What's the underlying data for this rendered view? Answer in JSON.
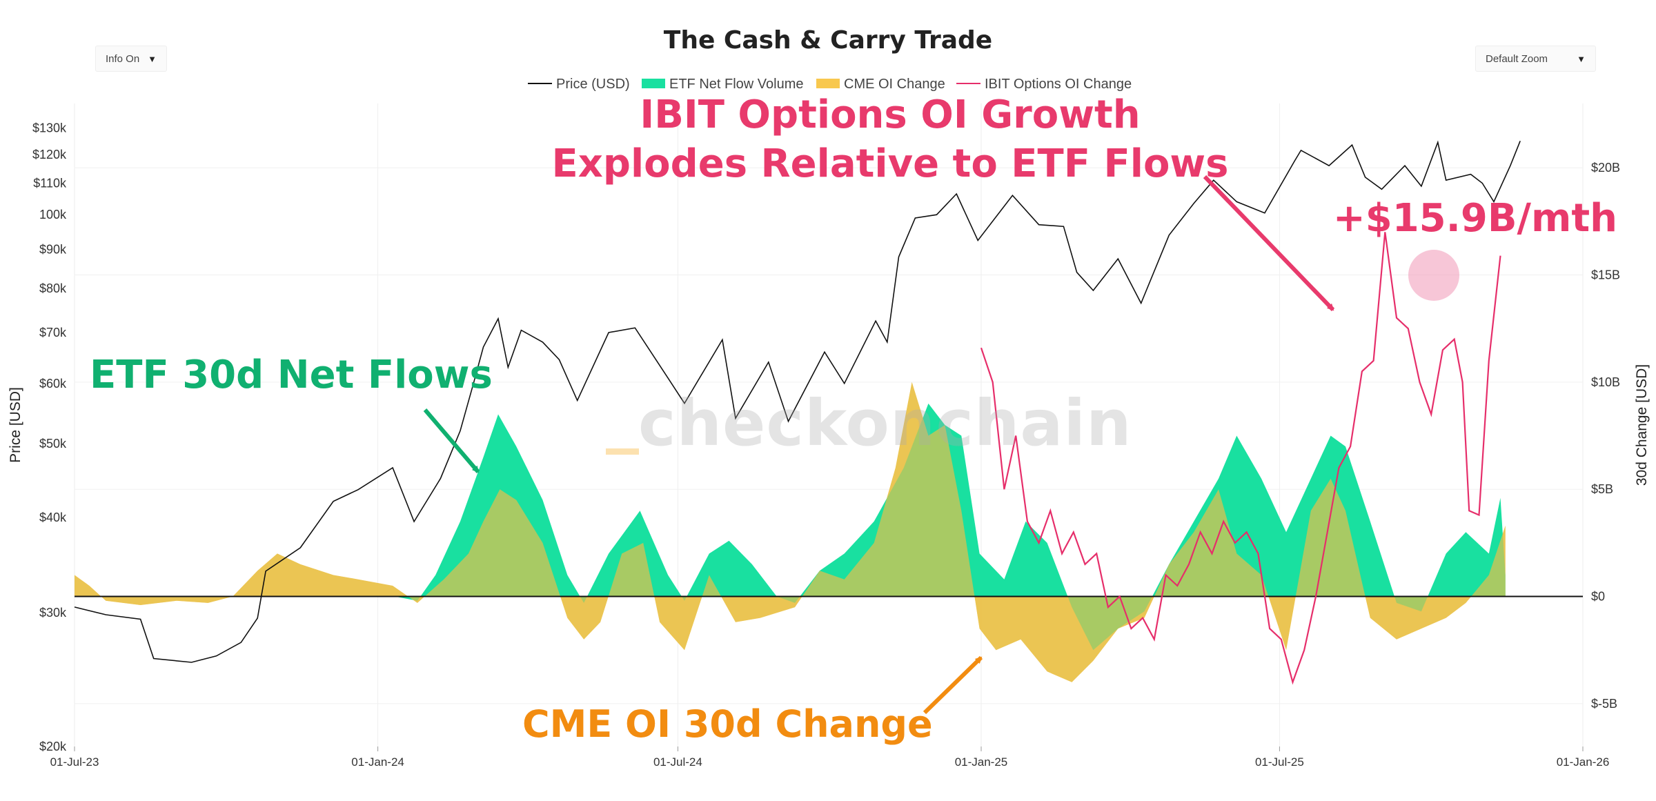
{
  "controls": {
    "info_toggle": "Info On",
    "zoom": "Default Zoom"
  },
  "watermark": "checkonchain",
  "colors": {
    "price": "#111111",
    "etf": "#19e0a0",
    "cme": "#f8c84e",
    "ibit": "#e62e6a",
    "etf_label": "#10b070",
    "cme_label": "#f28c10",
    "ibit_label": "#e83a6c"
  },
  "annotations": {
    "etf": "ETF 30d Net Flows",
    "cme": "CME OI 30d Change",
    "ibit_line1": "IBIT Options OI Growth",
    "ibit_line2": "Explodes Relative to ETF Flows",
    "ibit_value": "+$15.9B/mth"
  },
  "chart_data": {
    "type": "line",
    "title": "The Cash & Carry Trade",
    "legend_position": "top-center",
    "legend": [
      "Price (USD)",
      "ETF Net Flow Volume",
      "CME OI Change",
      "IBIT Options OI Change"
    ],
    "ylabel": "Price [USD]",
    "y2label": "30d Change [USD]",
    "y_scale": "log",
    "ylim": [
      20000,
      140000
    ],
    "y2lim": [
      -7000000000,
      23000000000
    ],
    "y_ticks": [
      {
        "v": 20000,
        "label": "$20k"
      },
      {
        "v": 30000,
        "label": "$30k"
      },
      {
        "v": 40000,
        "label": "$40k"
      },
      {
        "v": 50000,
        "label": "$50k"
      },
      {
        "v": 60000,
        "label": "$60k"
      },
      {
        "v": 70000,
        "label": "$70k"
      },
      {
        "v": 80000,
        "label": "$80k"
      },
      {
        "v": 90000,
        "label": "$90k"
      },
      {
        "v": 100000,
        "label": "100k"
      },
      {
        "v": 110000,
        "label": "$110k"
      },
      {
        "v": 120000,
        "label": "$120k"
      },
      {
        "v": 130000,
        "label": "$130k"
      }
    ],
    "y2_ticks": [
      {
        "v": -5000000000,
        "label": "$-5B"
      },
      {
        "v": 0,
        "label": "$0"
      },
      {
        "v": 5000000000,
        "label": "$5B"
      },
      {
        "v": 10000000000,
        "label": "$10B"
      },
      {
        "v": 15000000000,
        "label": "$15B"
      },
      {
        "v": 20000000000,
        "label": "$20B"
      }
    ],
    "x_ticks": [
      "2023-07-01",
      "2024-01-01",
      "2024-07-01",
      "2025-01-01",
      "2025-07-01",
      "2026-01-01"
    ],
    "x_tick_labels": [
      "01-Jul-23",
      "01-Jan-24",
      "01-Jul-24",
      "01-Jan-25",
      "01-Jul-25",
      "01-Jan-26"
    ],
    "xlim": [
      "2023-07-01",
      "2026-01-01"
    ],
    "grid": true,
    "series": [
      {
        "name": "Price (USD)",
        "axis": "left",
        "points": [
          [
            "2023-07-01",
            30500
          ],
          [
            "2023-07-20",
            29800
          ],
          [
            "2023-08-10",
            29400
          ],
          [
            "2023-08-18",
            26100
          ],
          [
            "2023-09-10",
            25800
          ],
          [
            "2023-09-25",
            26300
          ],
          [
            "2023-10-10",
            27400
          ],
          [
            "2023-10-20",
            29500
          ],
          [
            "2023-10-25",
            34000
          ],
          [
            "2023-11-15",
            36500
          ],
          [
            "2023-12-05",
            42000
          ],
          [
            "2023-12-20",
            43500
          ],
          [
            "2024-01-10",
            46500
          ],
          [
            "2024-01-23",
            39500
          ],
          [
            "2024-02-08",
            45000
          ],
          [
            "2024-02-20",
            52000
          ],
          [
            "2024-02-28",
            60000
          ],
          [
            "2024-03-05",
            67000
          ],
          [
            "2024-03-14",
            73000
          ],
          [
            "2024-03-20",
            63000
          ],
          [
            "2024-03-28",
            70500
          ],
          [
            "2024-04-10",
            68000
          ],
          [
            "2024-04-20",
            64500
          ],
          [
            "2024-05-01",
            57000
          ],
          [
            "2024-05-20",
            70000
          ],
          [
            "2024-06-05",
            71000
          ],
          [
            "2024-06-25",
            61000
          ],
          [
            "2024-07-05",
            56500
          ],
          [
            "2024-07-28",
            68500
          ],
          [
            "2024-08-05",
            54000
          ],
          [
            "2024-08-25",
            64000
          ],
          [
            "2024-09-06",
            53500
          ],
          [
            "2024-09-28",
            66000
          ],
          [
            "2024-10-10",
            60000
          ],
          [
            "2024-10-29",
            72500
          ],
          [
            "2024-11-05",
            68000
          ],
          [
            "2024-11-12",
            88000
          ],
          [
            "2024-11-22",
            99000
          ],
          [
            "2024-12-05",
            100000
          ],
          [
            "2024-12-17",
            106500
          ],
          [
            "2024-12-30",
            92500
          ],
          [
            "2025-01-20",
            106000
          ],
          [
            "2025-02-05",
            97000
          ],
          [
            "2025-02-20",
            96500
          ],
          [
            "2025-02-28",
            84000
          ],
          [
            "2025-03-10",
            79500
          ],
          [
            "2025-03-25",
            87500
          ],
          [
            "2025-04-08",
            76500
          ],
          [
            "2025-04-25",
            94000
          ],
          [
            "2025-05-10",
            103500
          ],
          [
            "2025-05-22",
            111000
          ],
          [
            "2025-06-05",
            104000
          ],
          [
            "2025-06-22",
            100500
          ],
          [
            "2025-07-10",
            117500
          ],
          [
            "2025-07-14",
            121500
          ],
          [
            "2025-07-31",
            116000
          ],
          [
            "2025-08-14",
            123500
          ],
          [
            "2025-08-22",
            112000
          ],
          [
            "2025-09-01",
            108000
          ],
          [
            "2025-09-15",
            116000
          ],
          [
            "2025-09-25",
            109000
          ],
          [
            "2025-10-05",
            124500
          ],
          [
            "2025-10-10",
            111000
          ],
          [
            "2025-10-25",
            113000
          ],
          [
            "2025-11-01",
            110000
          ],
          [
            "2025-11-08",
            104000
          ],
          [
            "2025-11-18",
            116000
          ],
          [
            "2025-11-24",
            125000
          ]
        ]
      },
      {
        "name": "ETF Net Flow Volume",
        "axis": "right",
        "points": [
          [
            "2024-01-11",
            0
          ],
          [
            "2024-01-25",
            -200000000
          ],
          [
            "2024-02-05",
            1000000000
          ],
          [
            "2024-02-20",
            3500000000
          ],
          [
            "2024-03-05",
            6500000000
          ],
          [
            "2024-03-14",
            8500000000
          ],
          [
            "2024-03-25",
            7000000000
          ],
          [
            "2024-04-10",
            4500000000
          ],
          [
            "2024-04-25",
            1000000000
          ],
          [
            "2024-05-05",
            -300000000
          ],
          [
            "2024-05-20",
            2000000000
          ],
          [
            "2024-06-08",
            4000000000
          ],
          [
            "2024-06-25",
            1000000000
          ],
          [
            "2024-07-05",
            -200000000
          ],
          [
            "2024-07-20",
            2000000000
          ],
          [
            "2024-08-01",
            2600000000
          ],
          [
            "2024-08-15",
            1500000000
          ],
          [
            "2024-08-30",
            0
          ],
          [
            "2024-09-10",
            -300000000
          ],
          [
            "2024-09-25",
            1200000000
          ],
          [
            "2024-10-10",
            2000000000
          ],
          [
            "2024-10-28",
            3500000000
          ],
          [
            "2024-11-15",
            6000000000
          ],
          [
            "2024-11-30",
            9000000000
          ],
          [
            "2024-12-10",
            8000000000
          ],
          [
            "2024-12-20",
            7500000000
          ],
          [
            "2024-12-31",
            2000000000
          ],
          [
            "2025-01-15",
            800000000
          ],
          [
            "2025-01-28",
            3500000000
          ],
          [
            "2025-02-10",
            2500000000
          ],
          [
            "2025-02-25",
            -500000000
          ],
          [
            "2025-03-10",
            -2500000000
          ],
          [
            "2025-03-25",
            -1500000000
          ],
          [
            "2025-04-10",
            -700000000
          ],
          [
            "2025-04-25",
            1500000000
          ],
          [
            "2025-05-10",
            3500000000
          ],
          [
            "2025-05-25",
            5500000000
          ],
          [
            "2025-06-05",
            7500000000
          ],
          [
            "2025-06-20",
            5500000000
          ],
          [
            "2025-07-05",
            3000000000
          ],
          [
            "2025-07-20",
            5500000000
          ],
          [
            "2025-08-01",
            7500000000
          ],
          [
            "2025-08-10",
            7000000000
          ],
          [
            "2025-08-25",
            3500000000
          ],
          [
            "2025-09-10",
            -300000000
          ],
          [
            "2025-09-25",
            -700000000
          ],
          [
            "2025-10-10",
            2000000000
          ],
          [
            "2025-10-22",
            3000000000
          ],
          [
            "2025-11-05",
            2000000000
          ],
          [
            "2025-11-12",
            4600000000
          ],
          [
            "2025-11-15",
            1000000000
          ]
        ]
      },
      {
        "name": "CME OI Change",
        "axis": "right",
        "points": [
          [
            "2023-07-01",
            1000000000
          ],
          [
            "2023-07-10",
            500000000
          ],
          [
            "2023-07-20",
            -200000000
          ],
          [
            "2023-08-10",
            -400000000
          ],
          [
            "2023-09-01",
            -200000000
          ],
          [
            "2023-09-20",
            -300000000
          ],
          [
            "2023-10-05",
            0
          ],
          [
            "2023-10-20",
            1200000000
          ],
          [
            "2023-11-01",
            2000000000
          ],
          [
            "2023-11-15",
            1500000000
          ],
          [
            "2023-12-05",
            1000000000
          ],
          [
            "2023-12-20",
            800000000
          ],
          [
            "2024-01-10",
            500000000
          ],
          [
            "2024-01-25",
            -300000000
          ],
          [
            "2024-02-10",
            800000000
          ],
          [
            "2024-02-25",
            2000000000
          ],
          [
            "2024-03-05",
            3500000000
          ],
          [
            "2024-03-15",
            5000000000
          ],
          [
            "2024-03-25",
            4500000000
          ],
          [
            "2024-04-10",
            2500000000
          ],
          [
            "2024-04-25",
            -1000000000
          ],
          [
            "2024-05-05",
            -2000000000
          ],
          [
            "2024-05-15",
            -1200000000
          ],
          [
            "2024-05-28",
            2000000000
          ],
          [
            "2024-06-10",
            2500000000
          ],
          [
            "2024-06-20",
            -1200000000
          ],
          [
            "2024-07-05",
            -2500000000
          ],
          [
            "2024-07-20",
            1000000000
          ],
          [
            "2024-08-05",
            -1200000000
          ],
          [
            "2024-08-20",
            -1000000000
          ],
          [
            "2024-09-10",
            -500000000
          ],
          [
            "2024-09-25",
            1200000000
          ],
          [
            "2024-10-10",
            800000000
          ],
          [
            "2024-10-28",
            2500000000
          ],
          [
            "2024-11-10",
            6000000000
          ],
          [
            "2024-11-20",
            10000000000
          ],
          [
            "2024-11-30",
            7500000000
          ],
          [
            "2024-12-10",
            8000000000
          ],
          [
            "2024-12-20",
            4000000000
          ],
          [
            "2024-12-31",
            -1500000000
          ],
          [
            "2025-01-10",
            -2500000000
          ],
          [
            "2025-01-25",
            -2000000000
          ],
          [
            "2025-02-10",
            -3500000000
          ],
          [
            "2025-02-25",
            -4000000000
          ],
          [
            "2025-03-10",
            -3000000000
          ],
          [
            "2025-03-25",
            -1500000000
          ],
          [
            "2025-04-10",
            -1000000000
          ],
          [
            "2025-04-25",
            1500000000
          ],
          [
            "2025-05-10",
            3000000000
          ],
          [
            "2025-05-25",
            5000000000
          ],
          [
            "2025-06-05",
            2000000000
          ],
          [
            "2025-06-20",
            1000000000
          ],
          [
            "2025-07-05",
            -2500000000
          ],
          [
            "2025-07-20",
            4000000000
          ],
          [
            "2025-08-01",
            5500000000
          ],
          [
            "2025-08-10",
            4000000000
          ],
          [
            "2025-08-25",
            -1000000000
          ],
          [
            "2025-09-10",
            -2000000000
          ],
          [
            "2025-09-25",
            -1500000000
          ],
          [
            "2025-10-10",
            -1000000000
          ],
          [
            "2025-10-22",
            -300000000
          ],
          [
            "2025-11-05",
            1000000000
          ],
          [
            "2025-11-15",
            3300000000
          ]
        ]
      },
      {
        "name": "IBIT Options OI Change",
        "axis": "right",
        "points": [
          [
            "2025-01-01",
            11600000000
          ],
          [
            "2025-01-08",
            10000000000
          ],
          [
            "2025-01-15",
            5000000000
          ],
          [
            "2025-01-22",
            7500000000
          ],
          [
            "2025-01-29",
            3500000000
          ],
          [
            "2025-02-05",
            2500000000
          ],
          [
            "2025-02-12",
            4000000000
          ],
          [
            "2025-02-19",
            2000000000
          ],
          [
            "2025-02-26",
            3000000000
          ],
          [
            "2025-03-05",
            1500000000
          ],
          [
            "2025-03-12",
            2000000000
          ],
          [
            "2025-03-19",
            -500000000
          ],
          [
            "2025-03-26",
            0
          ],
          [
            "2025-04-02",
            -1500000000
          ],
          [
            "2025-04-09",
            -1000000000
          ],
          [
            "2025-04-16",
            -2000000000
          ],
          [
            "2025-04-23",
            1000000000
          ],
          [
            "2025-04-30",
            500000000
          ],
          [
            "2025-05-07",
            1500000000
          ],
          [
            "2025-05-14",
            3000000000
          ],
          [
            "2025-05-21",
            2000000000
          ],
          [
            "2025-05-28",
            3500000000
          ],
          [
            "2025-06-04",
            2500000000
          ],
          [
            "2025-06-11",
            3000000000
          ],
          [
            "2025-06-18",
            2000000000
          ],
          [
            "2025-06-25",
            -1500000000
          ],
          [
            "2025-07-02",
            -2000000000
          ],
          [
            "2025-07-09",
            -4000000000
          ],
          [
            "2025-07-16",
            -2500000000
          ],
          [
            "2025-07-23",
            0
          ],
          [
            "2025-07-30",
            3000000000
          ],
          [
            "2025-08-06",
            6000000000
          ],
          [
            "2025-08-13",
            7000000000
          ],
          [
            "2025-08-20",
            10500000000
          ],
          [
            "2025-08-27",
            11000000000
          ],
          [
            "2025-09-03",
            17000000000
          ],
          [
            "2025-09-10",
            13000000000
          ],
          [
            "2025-09-17",
            12500000000
          ],
          [
            "2025-09-24",
            10000000000
          ],
          [
            "2025-10-01",
            8500000000
          ],
          [
            "2025-10-08",
            11500000000
          ],
          [
            "2025-10-15",
            12000000000
          ],
          [
            "2025-10-20",
            10000000000
          ],
          [
            "2025-10-24",
            4000000000
          ],
          [
            "2025-10-30",
            3800000000
          ],
          [
            "2025-11-05",
            11000000000
          ],
          [
            "2025-11-12",
            15900000000
          ]
        ]
      }
    ]
  }
}
